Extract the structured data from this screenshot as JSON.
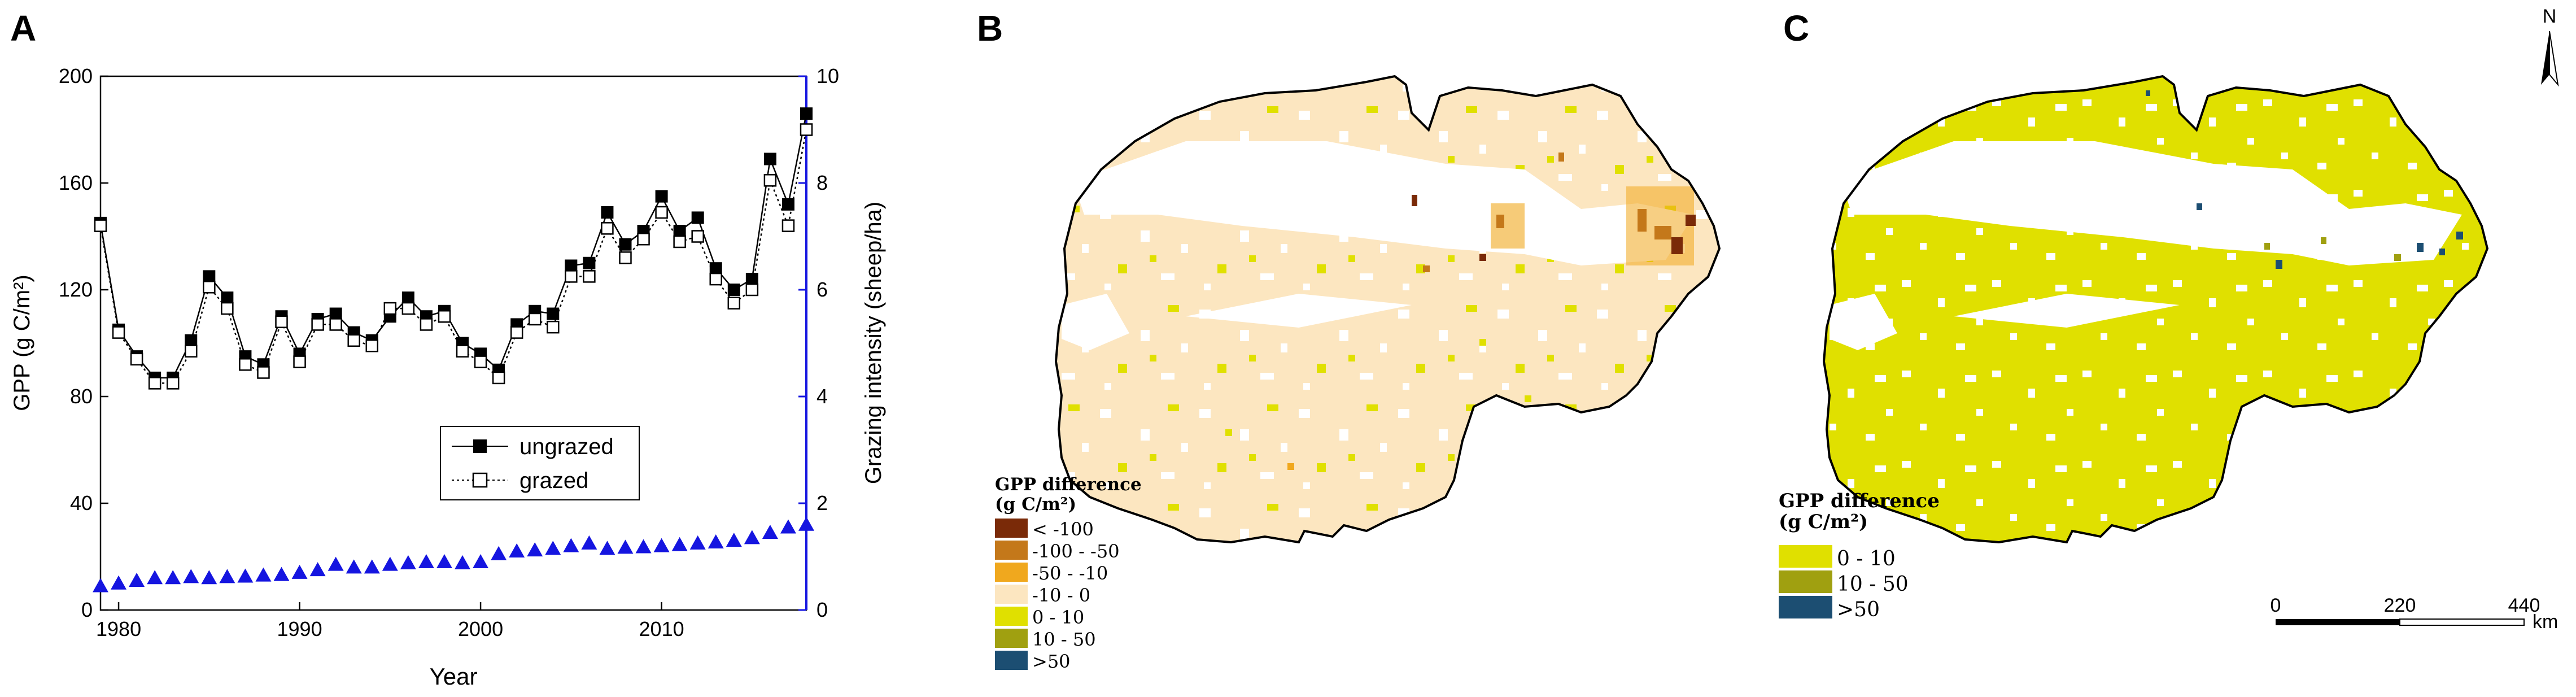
{
  "panels": {
    "a": {
      "letter": "A"
    },
    "b": {
      "letter": "B"
    },
    "c": {
      "letter": "C"
    }
  },
  "chart_data": [
    {
      "type": "line",
      "panel": "A",
      "xlabel": "Year",
      "ylabel": "GPP (g C/m²)",
      "y2label": "Grazing intensity (sheep/ha)",
      "xlim": [
        1979,
        2018
      ],
      "ylim": [
        0,
        200
      ],
      "y2lim": [
        0,
        10
      ],
      "xticks": [
        1980,
        1990,
        2000,
        2010
      ],
      "yticks": [
        0,
        40,
        80,
        120,
        160,
        200
      ],
      "y2ticks": [
        0,
        2,
        4,
        6,
        8,
        10
      ],
      "x": [
        1979,
        1980,
        1981,
        1982,
        1983,
        1984,
        1985,
        1986,
        1987,
        1988,
        1989,
        1990,
        1991,
        1992,
        1993,
        1994,
        1995,
        1996,
        1997,
        1998,
        1999,
        2000,
        2001,
        2002,
        2003,
        2004,
        2005,
        2006,
        2007,
        2008,
        2009,
        2010,
        2011,
        2012,
        2013,
        2014,
        2015,
        2016,
        2017,
        2018
      ],
      "series": [
        {
          "name": "ungrazed",
          "axis": "left",
          "color": "#000000",
          "marker": "filled-square",
          "line": "solid",
          "values": [
            145,
            105,
            95,
            87,
            87,
            101,
            125,
            117,
            95,
            92,
            110,
            96,
            109,
            111,
            104,
            101,
            110,
            117,
            110,
            112,
            100,
            96,
            90,
            107,
            112,
            111,
            129,
            130,
            149,
            137,
            142,
            155,
            142,
            147,
            128,
            120,
            124,
            169,
            152,
            186
          ]
        },
        {
          "name": "grazed",
          "axis": "left",
          "color": "#000000",
          "marker": "open-square",
          "line": "dotted",
          "values": [
            144,
            104,
            94,
            85,
            85,
            97,
            121,
            113,
            92,
            89,
            108,
            93,
            107,
            107,
            101,
            99,
            113,
            113,
            107,
            110,
            97,
            93,
            87,
            104,
            109,
            106,
            125,
            125,
            143,
            132,
            139,
            149,
            138,
            140,
            124,
            115,
            120,
            161,
            144,
            180
          ]
        },
        {
          "name": "",
          "axis": "right",
          "color": "#1515e0",
          "marker": "filled-triangle",
          "line": "none",
          "values": [
            0.45,
            0.5,
            0.55,
            0.6,
            0.6,
            0.62,
            0.6,
            0.62,
            0.63,
            0.65,
            0.66,
            0.7,
            0.75,
            0.85,
            0.8,
            0.8,
            0.85,
            0.88,
            0.9,
            0.9,
            0.88,
            0.9,
            1.05,
            1.1,
            1.12,
            1.15,
            1.2,
            1.25,
            1.15,
            1.17,
            1.18,
            1.2,
            1.22,
            1.25,
            1.27,
            1.3,
            1.35,
            1.45,
            1.55,
            1.6
          ]
        }
      ],
      "legend": {
        "position": "lower-right-inside",
        "entries": [
          "ungrazed",
          "grazed"
        ]
      }
    },
    {
      "type": "map",
      "panel": "B",
      "legend": {
        "title": "GPP difference",
        "unit": "(g C/m²)",
        "classes": [
          {
            "label": "< -100",
            "color": "#7a2a08"
          },
          {
            "label": "-100 - -50",
            "color": "#c4781a"
          },
          {
            "label": "-50 - -10",
            "color": "#f0a81e"
          },
          {
            "label": "-10 - 0",
            "color": "#fce6c0"
          },
          {
            "label": "0 - 10",
            "color": "#e0e000"
          },
          {
            "label": "10 - 50",
            "color": "#a0a010"
          },
          {
            "label": ">50",
            "color": "#1c4e72"
          }
        ]
      }
    },
    {
      "type": "map",
      "panel": "C",
      "legend": {
        "title": "GPP difference",
        "unit": "(g C/m²)",
        "classes": [
          {
            "label": "0 - 10",
            "color": "#e0e000"
          },
          {
            "label": "10 - 50",
            "color": "#a0a010"
          },
          {
            "label": ">50",
            "color": "#1c4e72"
          }
        ]
      },
      "north_arrow": "N",
      "scale_bar": {
        "ticks": [
          "0",
          "220",
          "440"
        ],
        "unit": "km"
      }
    }
  ]
}
